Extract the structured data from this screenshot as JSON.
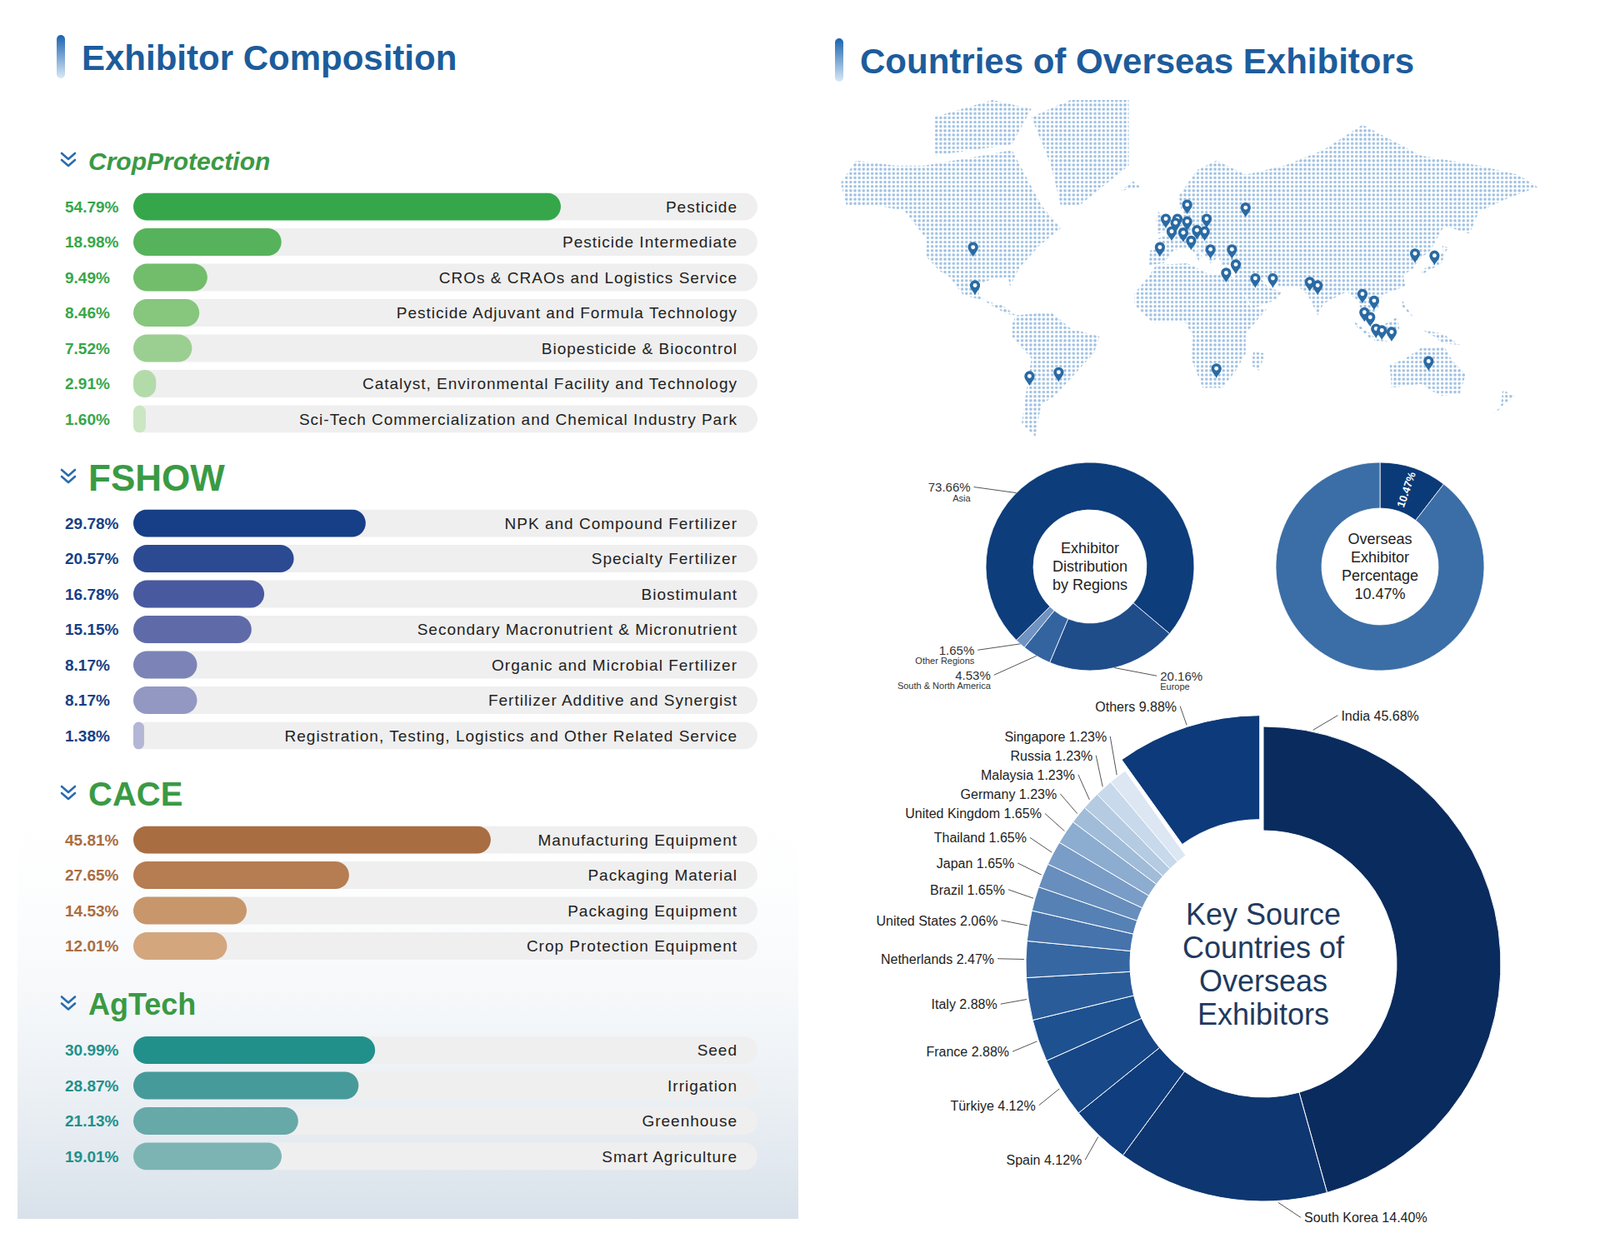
{
  "section_titles": [
    "Exhibitor Composition",
    "Countries of Overseas Exhibitors"
  ],
  "chart_data": [
    {
      "type": "bar",
      "orientation": "horizontal",
      "title": "CropProtection",
      "categories": [
        "Pesticide",
        "Pesticide Intermediate",
        "CROs & CRAOs and Logistics Service",
        "Pesticide Adjuvant and Formula Technology",
        "Biopesticide & Biocontrol",
        "Catalyst, Environmental Facility and Technology",
        "Sci-Tech Commercialization and Chemical Industry Park"
      ],
      "values": [
        54.79,
        18.98,
        9.49,
        8.46,
        7.52,
        2.91,
        1.6
      ],
      "value_labels": [
        "54.79%",
        "18.98%",
        "9.49%",
        "8.46%",
        "7.52%",
        "2.91%",
        "1.60%"
      ],
      "colors": [
        "#35a74a",
        "#56b35b",
        "#72bd6b",
        "#86c67d",
        "#9bcf91",
        "#b3dba9",
        "#cbe6c3"
      ],
      "xlim": [
        0,
        80
      ],
      "data_labels": true,
      "tick_labels": "y"
    },
    {
      "type": "bar",
      "orientation": "horizontal",
      "title": "FSHOW",
      "categories": [
        "NPK and Compound Fertilizer",
        "Specialty Fertilizer",
        "Biostimulant",
        "Secondary Macronutrient & Micronutrient",
        "Organic and Microbial Fertilizer",
        "Fertilizer Additive and Synergist",
        "Registration, Testing, Logistics and Other Related Service"
      ],
      "values": [
        29.78,
        20.57,
        16.78,
        15.15,
        8.17,
        8.17,
        1.38
      ],
      "value_labels": [
        "29.78%",
        "20.57%",
        "16.78%",
        "15.15%",
        "8.17%",
        "8.17%",
        "1.38%"
      ],
      "colors": [
        "#173f87",
        "#2b4a92",
        "#4859a0",
        "#5f6ba9",
        "#7c84b7",
        "#9398c3",
        "#b3b6d5"
      ],
      "xlim": [
        0,
        80
      ],
      "data_labels": true,
      "tick_labels": "y"
    },
    {
      "type": "bar",
      "orientation": "horizontal",
      "title": "CACE",
      "categories": [
        "Manufacturing Equipment",
        "Packaging Material",
        "Packaging Equipment",
        "Crop Protection Equipment"
      ],
      "values": [
        45.81,
        27.65,
        14.53,
        12.01
      ],
      "value_labels": [
        "45.81%",
        "27.65%",
        "14.53%",
        "12.01%"
      ],
      "colors": [
        "#a96d42",
        "#b67c52",
        "#c8966b",
        "#d3a67e"
      ],
      "xlim": [
        0,
        80
      ],
      "data_labels": true,
      "tick_labels": "y"
    },
    {
      "type": "bar",
      "orientation": "horizontal",
      "title": "AgTech",
      "categories": [
        "Seed",
        "Irrigation",
        "Greenhouse",
        "Smart Agriculture"
      ],
      "values": [
        30.99,
        28.87,
        21.13,
        19.01
      ],
      "value_labels": [
        "30.99%",
        "28.87%",
        "21.13%",
        "19.01%"
      ],
      "colors": [
        "#21908b",
        "#469b9a",
        "#67a8a8",
        "#7cb4b4"
      ],
      "xlim": [
        0,
        80
      ],
      "data_labels": true,
      "tick_labels": "y"
    },
    {
      "type": "donut",
      "title": "Exhibitor Distribution by Regions",
      "categories": [
        "Asia",
        "Europe",
        "South & North America",
        "Other Regions"
      ],
      "values": [
        73.66,
        20.16,
        4.53,
        1.65
      ],
      "value_labels": [
        "73.66%",
        "20.16%",
        "4.53%",
        "1.65%"
      ],
      "colors": [
        "#0d3d7b",
        "#1f4d8a",
        "#3464a0",
        "#6f93c2"
      ],
      "data_labels": true
    },
    {
      "type": "donut",
      "title": "Overseas Exhibitor Percentage",
      "categories": [
        null,
        null
      ],
      "values": [
        10.47,
        89.53
      ],
      "value_labels": [
        "10.47%",
        null
      ],
      "colors": [
        "#0b3a78",
        "#3b6ea6"
      ],
      "data_labels": true
    },
    {
      "type": "donut",
      "title": "Key Source Countries of Overseas Exhibitors",
      "categories": [
        "India",
        "South Korea",
        "Spain",
        "Türkiye",
        "France",
        "Italy",
        "Netherlands",
        "United States",
        "Brazil",
        "Japan",
        "Thailand",
        "United Kingdom",
        "Germany",
        "Malaysia",
        "Russia",
        "Singapore",
        "Others"
      ],
      "values": [
        45.68,
        14.4,
        4.12,
        4.12,
        2.88,
        2.88,
        2.47,
        2.06,
        1.65,
        1.65,
        1.65,
        1.65,
        1.23,
        1.23,
        1.23,
        1.23,
        9.88
      ],
      "value_labels": [
        "45.68%",
        "14.40%",
        "4.12%",
        "4.12%",
        "2.88%",
        "2.88%",
        "2.47%",
        "2.06%",
        "1.65%",
        "1.65%",
        "1.65%",
        "1.65%",
        "1.23%",
        "1.23%",
        "1.23%",
        "1.23%",
        "9.88%"
      ],
      "colors": [
        "#0a2b5e",
        "#0e3670",
        "#0f3d7d",
        "#174787",
        "#1e5190",
        "#2a5c99",
        "#3767a2",
        "#4673ab",
        "#5681b4",
        "#678ebd",
        "#7a9dc7",
        "#8cacd0",
        "#a0bcd9",
        "#b4cbe2",
        "#c8d9eb",
        "#dce7f3",
        "#0d3a7a"
      ],
      "data_labels": true
    }
  ]
}
